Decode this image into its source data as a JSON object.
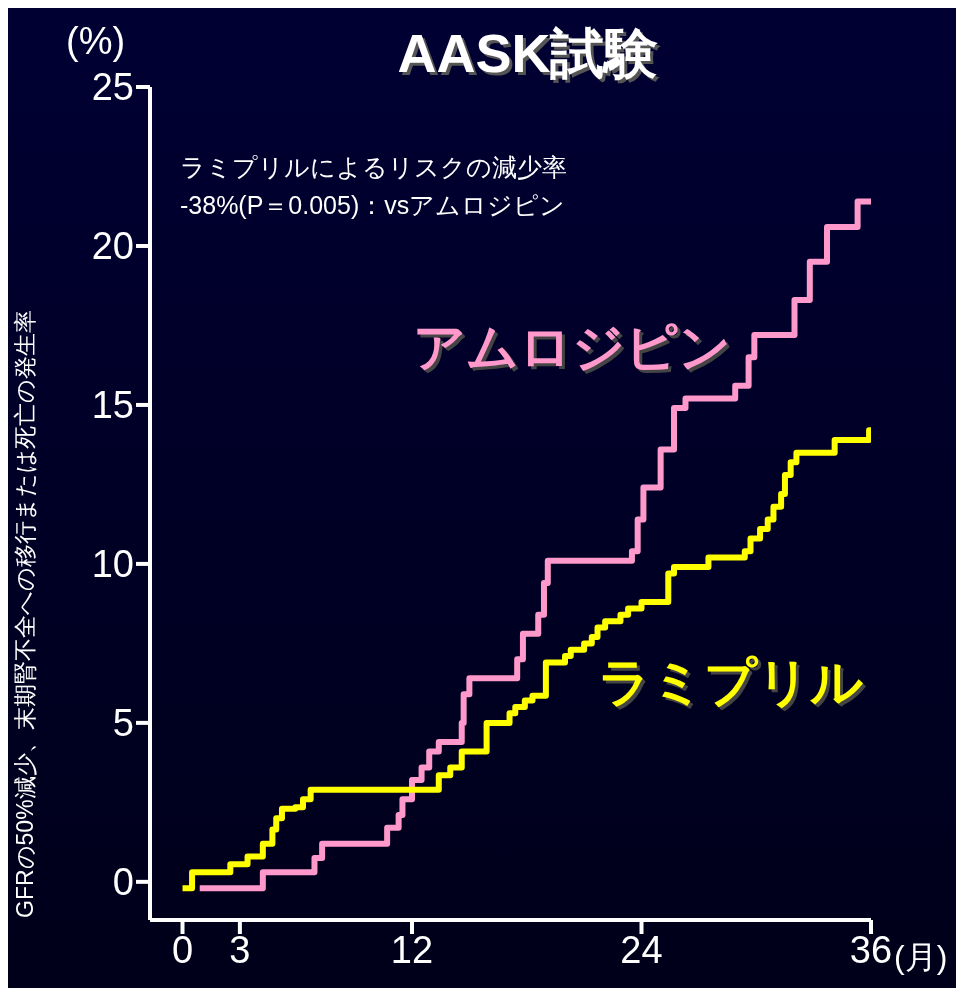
{
  "chart_data": {
    "type": "step",
    "title": "AASK試験",
    "ylabel": "GFRの50%減少、末期腎不全への移行または死亡の発生率",
    "xlabel": "(月)",
    "annotations": [
      "(%)",
      "ラミプリルによるリスクの減少率",
      "-38%(P＝0.005)：vsアムロジピン"
    ],
    "xlim": [
      -1.7,
      36
    ],
    "xticks": [
      0,
      3,
      12,
      24,
      36
    ],
    "ylim": [
      -1.2,
      25
    ],
    "yticks": [
      0,
      5,
      10,
      15,
      20,
      25
    ],
    "grid": false,
    "legend": false,
    "marker": "none",
    "line_style": "solid",
    "series": [
      {
        "name": "アムロジピン",
        "color": "#ff99cc",
        "x": [
          0.9,
          4.2,
          6.9,
          7.3,
          10.7,
          11.3,
          11.5,
          12.0,
          12.5,
          12.9,
          13.4,
          14.6,
          14.7,
          15.0,
          17.5,
          17.8,
          18.6,
          18.9,
          19.1,
          23.5,
          23.8,
          24.1,
          25.0,
          25.7,
          26.3,
          28.9,
          29.6,
          29.9,
          32.0,
          32.8,
          33.7,
          35.3,
          36
        ],
        "values": [
          -0.2,
          0.3,
          0.75,
          1.2,
          1.7,
          2.1,
          2.6,
          3.2,
          3.6,
          4.1,
          4.4,
          5.0,
          5.9,
          6.4,
          7.0,
          7.8,
          8.4,
          9.4,
          10.1,
          10.4,
          11.4,
          12.4,
          13.6,
          14.9,
          15.2,
          15.6,
          16.5,
          17.2,
          18.3,
          19.5,
          20.6,
          21.4,
          21.4
        ]
      },
      {
        "name": "ラミプリル",
        "color": "#ffff00",
        "x": [
          0,
          0.5,
          2.5,
          3.4,
          4.2,
          4.7,
          4.9,
          5.2,
          5.9,
          6.3,
          6.7,
          13.4,
          14.0,
          14.6,
          15.9,
          17.1,
          17.4,
          17.9,
          18.3,
          19.0,
          20.0,
          20.3,
          21.0,
          21.4,
          21.7,
          22.1,
          22.9,
          23.3,
          24.0,
          25.4,
          25.7,
          27.5,
          29.4,
          29.7,
          30.2,
          30.6,
          30.9,
          31.3,
          31.5,
          31.8,
          32.1,
          34.1,
          35.9,
          36
        ],
        "values": [
          -0.2,
          0.3,
          0.55,
          0.8,
          1.2,
          1.65,
          2.0,
          2.3,
          2.35,
          2.6,
          2.9,
          3.35,
          3.6,
          4.1,
          5.0,
          5.3,
          5.5,
          5.7,
          5.85,
          6.9,
          7.1,
          7.3,
          7.5,
          7.7,
          8.0,
          8.2,
          8.4,
          8.6,
          8.8,
          9.7,
          9.9,
          10.2,
          10.4,
          10.8,
          11.1,
          11.4,
          11.8,
          12.2,
          12.8,
          13.2,
          13.5,
          13.9,
          14.2,
          14.2
        ]
      }
    ]
  }
}
